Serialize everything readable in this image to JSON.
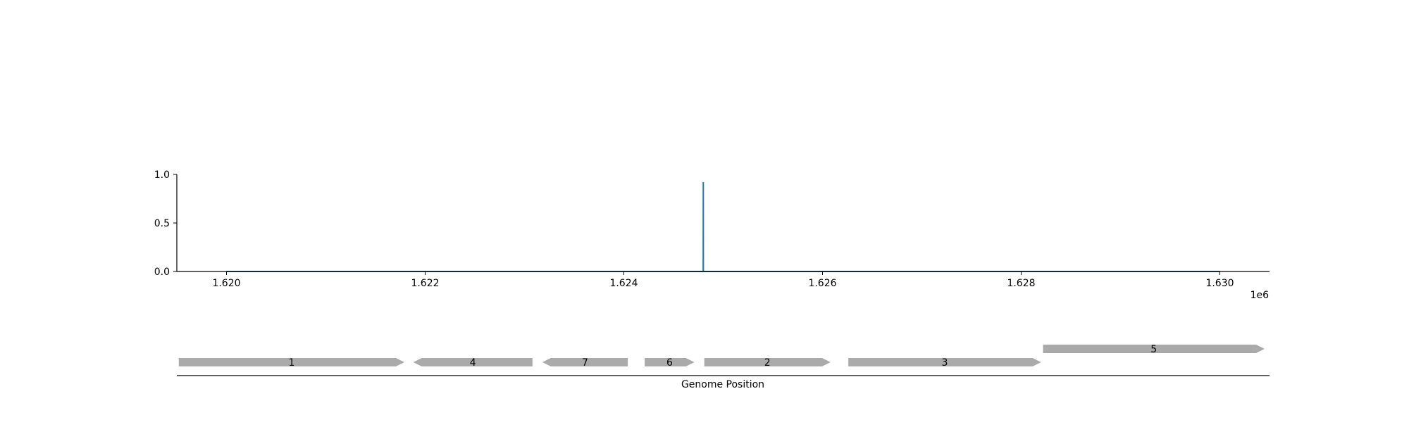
{
  "chart_data": [
    {
      "type": "line",
      "title": "",
      "xlabel": "",
      "ylabel": "",
      "xlim": [
        1619500,
        1630500
      ],
      "ylim": [
        0,
        1.0
      ],
      "x_offset_label": "1e6",
      "x_ticks": [
        1620000,
        1622000,
        1624000,
        1626000,
        1628000,
        1630000
      ],
      "x_tick_labels": [
        "1.620",
        "1.622",
        "1.624",
        "1.626",
        "1.628",
        "1.630"
      ],
      "y_ticks": [
        0.0,
        0.5,
        1.0
      ],
      "y_tick_labels": [
        "0.0",
        "0.5",
        "1.0"
      ],
      "series": [
        {
          "color": "#1f77b4",
          "x": [
            1620000,
            1624799,
            1624800,
            1624801,
            1630000
          ],
          "y": [
            0.0,
            0.0,
            0.92,
            0.0,
            0.0
          ]
        }
      ]
    },
    {
      "type": "gene_track",
      "xlabel": "Genome Position",
      "xlim": [
        1619500,
        1630500
      ],
      "color": "#aaaaaa",
      "genes": [
        {
          "label": "1",
          "start": 1619520,
          "end": 1621790,
          "strand": "+",
          "row": 0
        },
        {
          "label": "4",
          "start": 1621880,
          "end": 1623080,
          "strand": "-",
          "row": 0
        },
        {
          "label": "7",
          "start": 1623180,
          "end": 1624040,
          "strand": "-",
          "row": 0
        },
        {
          "label": "6",
          "start": 1624210,
          "end": 1624710,
          "strand": "+",
          "row": 0
        },
        {
          "label": "2",
          "start": 1624810,
          "end": 1626080,
          "strand": "+",
          "row": 0
        },
        {
          "label": "3",
          "start": 1626260,
          "end": 1628200,
          "strand": "+",
          "row": 0
        },
        {
          "label": "5",
          "start": 1628220,
          "end": 1630450,
          "strand": "+",
          "row": 1
        }
      ]
    }
  ]
}
